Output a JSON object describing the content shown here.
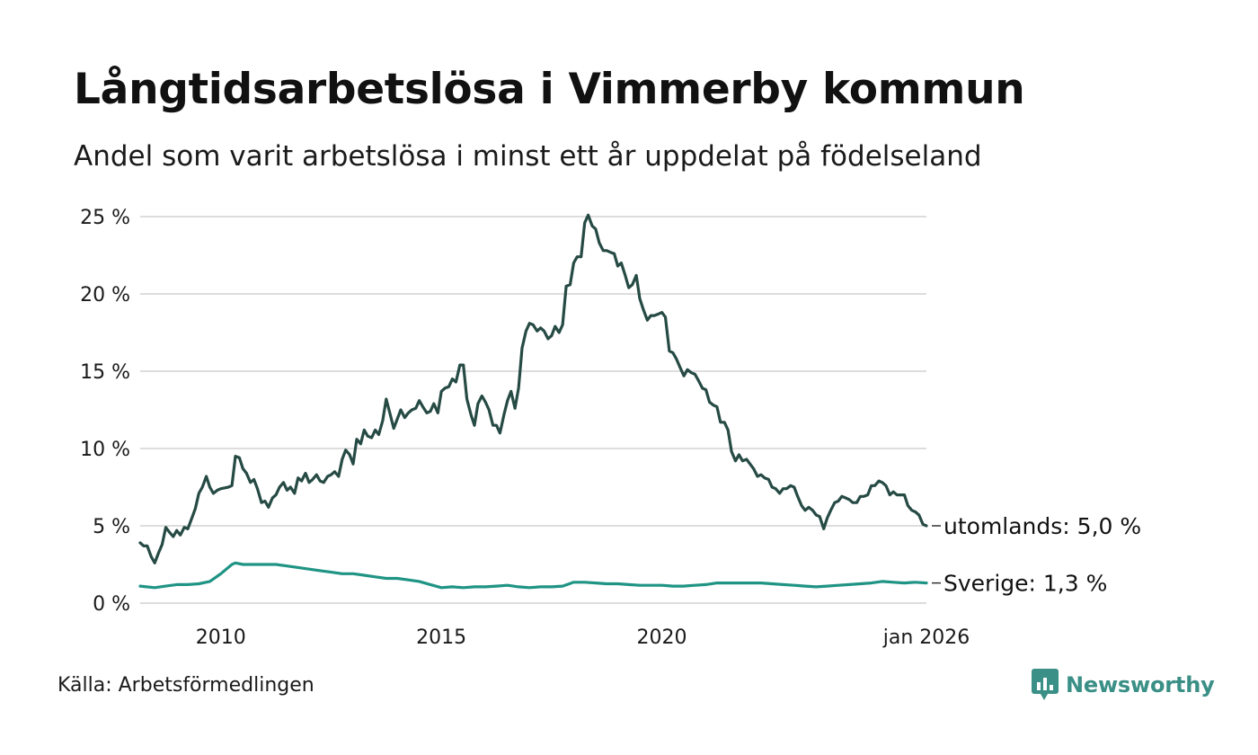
{
  "header": {
    "title": "Långtidsarbetslösa i Vimmerby kommun",
    "subtitle": "Andel som varit arbetslösa i minst ett år uppdelat på födelseland"
  },
  "footer": {
    "source": "Källa: Arbetsförmedlingen",
    "brand": "Newsworthy"
  },
  "colors": {
    "utomlands": "#264a44",
    "sverige": "#1f9484",
    "grid": "#dddddd",
    "brand": "#3a8f86"
  },
  "chart_data": {
    "type": "line",
    "title": "Långtidsarbetslösa i Vimmerby kommun",
    "subtitle": "Andel som varit arbetslösa i minst ett år uppdelat på födelseland",
    "xlabel": "",
    "ylabel": "",
    "x_range": [
      2008.17,
      2026.0
    ],
    "ylim": [
      0,
      25
    ],
    "y_ticks": [
      0,
      5,
      10,
      15,
      20,
      25
    ],
    "y_tick_labels": [
      "0 %",
      "5 %",
      "10 %",
      "15 %",
      "20 %",
      "25 %"
    ],
    "x_ticks": [
      2010,
      2015,
      2020,
      2026.0
    ],
    "x_tick_labels": [
      "2010",
      "2015",
      "2020",
      "jan 2026"
    ],
    "grid": true,
    "series": [
      {
        "name": "utomlands",
        "end_label": "utomlands: 5,0 %",
        "color": "#264a44",
        "points": [
          [
            2008.17,
            3.9
          ],
          [
            2008.25,
            3.7
          ],
          [
            2008.33,
            3.7
          ],
          [
            2008.42,
            3.0
          ],
          [
            2008.5,
            2.6
          ],
          [
            2008.58,
            3.2
          ],
          [
            2008.67,
            3.8
          ],
          [
            2008.75,
            4.9
          ],
          [
            2008.83,
            4.6
          ],
          [
            2008.92,
            4.3
          ],
          [
            2009.0,
            4.7
          ],
          [
            2009.08,
            4.4
          ],
          [
            2009.17,
            4.9
          ],
          [
            2009.25,
            4.8
          ],
          [
            2009.33,
            5.4
          ],
          [
            2009.42,
            6.1
          ],
          [
            2009.5,
            7.1
          ],
          [
            2009.58,
            7.5
          ],
          [
            2009.67,
            8.2
          ],
          [
            2009.75,
            7.5
          ],
          [
            2009.83,
            7.1
          ],
          [
            2009.92,
            7.3
          ],
          [
            2010.0,
            7.4
          ],
          [
            2010.08,
            7.45
          ],
          [
            2010.17,
            7.5
          ],
          [
            2010.25,
            7.6
          ],
          [
            2010.33,
            9.5
          ],
          [
            2010.42,
            9.4
          ],
          [
            2010.5,
            8.7
          ],
          [
            2010.58,
            8.4
          ],
          [
            2010.67,
            7.8
          ],
          [
            2010.75,
            8.0
          ],
          [
            2010.83,
            7.4
          ],
          [
            2010.92,
            6.5
          ],
          [
            2011.0,
            6.6
          ],
          [
            2011.08,
            6.2
          ],
          [
            2011.17,
            6.8
          ],
          [
            2011.25,
            7.0
          ],
          [
            2011.33,
            7.5
          ],
          [
            2011.42,
            7.8
          ],
          [
            2011.5,
            7.3
          ],
          [
            2011.58,
            7.5
          ],
          [
            2011.67,
            7.1
          ],
          [
            2011.75,
            8.1
          ],
          [
            2011.83,
            7.9
          ],
          [
            2011.92,
            8.4
          ],
          [
            2012.0,
            7.8
          ],
          [
            2012.08,
            8.0
          ],
          [
            2012.17,
            8.3
          ],
          [
            2012.25,
            7.9
          ],
          [
            2012.33,
            7.8
          ],
          [
            2012.42,
            8.2
          ],
          [
            2012.5,
            8.3
          ],
          [
            2012.58,
            8.5
          ],
          [
            2012.67,
            8.2
          ],
          [
            2012.75,
            9.3
          ],
          [
            2012.83,
            9.9
          ],
          [
            2012.92,
            9.6
          ],
          [
            2013.0,
            9.0
          ],
          [
            2013.08,
            10.6
          ],
          [
            2013.17,
            10.3
          ],
          [
            2013.25,
            11.2
          ],
          [
            2013.33,
            10.8
          ],
          [
            2013.42,
            10.7
          ],
          [
            2013.5,
            11.2
          ],
          [
            2013.58,
            10.9
          ],
          [
            2013.67,
            11.8
          ],
          [
            2013.75,
            13.2
          ],
          [
            2013.83,
            12.3
          ],
          [
            2013.92,
            11.3
          ],
          [
            2014.0,
            11.9
          ],
          [
            2014.08,
            12.5
          ],
          [
            2014.17,
            12.0
          ],
          [
            2014.25,
            12.3
          ],
          [
            2014.33,
            12.5
          ],
          [
            2014.42,
            12.6
          ],
          [
            2014.5,
            13.1
          ],
          [
            2014.58,
            12.7
          ],
          [
            2014.67,
            12.3
          ],
          [
            2014.75,
            12.4
          ],
          [
            2014.83,
            12.9
          ],
          [
            2014.92,
            12.3
          ],
          [
            2015.0,
            13.7
          ],
          [
            2015.08,
            13.9
          ],
          [
            2015.17,
            14.0
          ],
          [
            2015.25,
            14.5
          ],
          [
            2015.33,
            14.3
          ],
          [
            2015.42,
            15.4
          ],
          [
            2015.5,
            15.4
          ],
          [
            2015.58,
            13.2
          ],
          [
            2015.67,
            12.2
          ],
          [
            2015.75,
            11.5
          ],
          [
            2015.83,
            12.9
          ],
          [
            2015.92,
            13.4
          ],
          [
            2016.0,
            13.0
          ],
          [
            2016.08,
            12.5
          ],
          [
            2016.17,
            11.5
          ],
          [
            2016.25,
            11.5
          ],
          [
            2016.33,
            11.0
          ],
          [
            2016.42,
            12.2
          ],
          [
            2016.5,
            13.1
          ],
          [
            2016.58,
            13.7
          ],
          [
            2016.67,
            12.6
          ],
          [
            2016.75,
            13.9
          ],
          [
            2016.83,
            16.5
          ],
          [
            2016.92,
            17.6
          ],
          [
            2017.0,
            18.1
          ],
          [
            2017.08,
            18.0
          ],
          [
            2017.17,
            17.6
          ],
          [
            2017.25,
            17.8
          ],
          [
            2017.33,
            17.6
          ],
          [
            2017.42,
            17.1
          ],
          [
            2017.5,
            17.3
          ],
          [
            2017.58,
            17.9
          ],
          [
            2017.67,
            17.5
          ],
          [
            2017.75,
            18.0
          ],
          [
            2017.83,
            20.5
          ],
          [
            2017.92,
            20.6
          ],
          [
            2018.0,
            22.0
          ],
          [
            2018.08,
            22.4
          ],
          [
            2018.17,
            22.4
          ],
          [
            2018.25,
            24.6
          ],
          [
            2018.33,
            25.1
          ],
          [
            2018.42,
            24.4
          ],
          [
            2018.5,
            24.2
          ],
          [
            2018.58,
            23.3
          ],
          [
            2018.67,
            22.8
          ],
          [
            2018.75,
            22.8
          ],
          [
            2018.83,
            22.7
          ],
          [
            2018.92,
            22.6
          ],
          [
            2019.0,
            21.8
          ],
          [
            2019.08,
            22.0
          ],
          [
            2019.17,
            21.2
          ],
          [
            2019.25,
            20.4
          ],
          [
            2019.33,
            20.6
          ],
          [
            2019.42,
            21.2
          ],
          [
            2019.5,
            19.7
          ],
          [
            2019.58,
            19.0
          ],
          [
            2019.67,
            18.3
          ],
          [
            2019.75,
            18.6
          ],
          [
            2019.83,
            18.6
          ],
          [
            2019.92,
            18.7
          ],
          [
            2020.0,
            18.8
          ],
          [
            2020.08,
            18.5
          ],
          [
            2020.17,
            16.3
          ],
          [
            2020.25,
            16.2
          ],
          [
            2020.33,
            15.8
          ],
          [
            2020.42,
            15.2
          ],
          [
            2020.5,
            14.7
          ],
          [
            2020.58,
            15.1
          ],
          [
            2020.67,
            14.9
          ],
          [
            2020.75,
            14.8
          ],
          [
            2020.83,
            14.4
          ],
          [
            2020.92,
            13.9
          ],
          [
            2021.0,
            13.8
          ],
          [
            2021.08,
            13.0
          ],
          [
            2021.17,
            12.8
          ],
          [
            2021.25,
            12.7
          ],
          [
            2021.33,
            11.7
          ],
          [
            2021.42,
            11.7
          ],
          [
            2021.5,
            11.2
          ],
          [
            2021.58,
            9.8
          ],
          [
            2021.67,
            9.2
          ],
          [
            2021.75,
            9.6
          ],
          [
            2021.83,
            9.2
          ],
          [
            2021.92,
            9.3
          ],
          [
            2022.0,
            9.0
          ],
          [
            2022.08,
            8.7
          ],
          [
            2022.17,
            8.2
          ],
          [
            2022.25,
            8.3
          ],
          [
            2022.33,
            8.1
          ],
          [
            2022.42,
            8.0
          ],
          [
            2022.5,
            7.5
          ],
          [
            2022.58,
            7.4
          ],
          [
            2022.67,
            7.1
          ],
          [
            2022.75,
            7.4
          ],
          [
            2022.83,
            7.4
          ],
          [
            2022.92,
            7.6
          ],
          [
            2023.0,
            7.5
          ],
          [
            2023.08,
            6.9
          ],
          [
            2023.17,
            6.3
          ],
          [
            2023.25,
            6.0
          ],
          [
            2023.33,
            6.2
          ],
          [
            2023.42,
            6.0
          ],
          [
            2023.5,
            5.7
          ],
          [
            2023.58,
            5.6
          ],
          [
            2023.67,
            4.8
          ],
          [
            2023.75,
            5.5
          ],
          [
            2023.83,
            6.0
          ],
          [
            2023.92,
            6.5
          ],
          [
            2024.0,
            6.6
          ],
          [
            2024.08,
            6.9
          ],
          [
            2024.17,
            6.8
          ],
          [
            2024.25,
            6.7
          ],
          [
            2024.33,
            6.5
          ],
          [
            2024.42,
            6.5
          ],
          [
            2024.5,
            6.9
          ],
          [
            2024.58,
            6.9
          ],
          [
            2024.67,
            7.0
          ],
          [
            2024.75,
            7.6
          ],
          [
            2024.83,
            7.6
          ],
          [
            2024.92,
            7.9
          ],
          [
            2025.0,
            7.8
          ],
          [
            2025.08,
            7.6
          ],
          [
            2025.17,
            7.0
          ],
          [
            2025.25,
            7.2
          ],
          [
            2025.33,
            7.0
          ],
          [
            2025.42,
            7.0
          ],
          [
            2025.5,
            7.0
          ],
          [
            2025.58,
            6.3
          ],
          [
            2025.67,
            6.0
          ],
          [
            2025.75,
            5.9
          ],
          [
            2025.83,
            5.7
          ],
          [
            2025.92,
            5.1
          ],
          [
            2026.0,
            5.0
          ]
        ]
      },
      {
        "name": "Sverige",
        "end_label": "Sverige: 1,3 %",
        "color": "#1f9484",
        "points": [
          [
            2008.17,
            1.1
          ],
          [
            2008.5,
            1.0
          ],
          [
            2008.75,
            1.1
          ],
          [
            2009.0,
            1.2
          ],
          [
            2009.25,
            1.2
          ],
          [
            2009.5,
            1.25
          ],
          [
            2009.75,
            1.4
          ],
          [
            2010.0,
            1.9
          ],
          [
            2010.25,
            2.5
          ],
          [
            2010.33,
            2.6
          ],
          [
            2010.5,
            2.5
          ],
          [
            2010.75,
            2.5
          ],
          [
            2011.0,
            2.5
          ],
          [
            2011.25,
            2.5
          ],
          [
            2011.5,
            2.4
          ],
          [
            2011.75,
            2.3
          ],
          [
            2012.0,
            2.2
          ],
          [
            2012.25,
            2.1
          ],
          [
            2012.5,
            2.0
          ],
          [
            2012.75,
            1.9
          ],
          [
            2013.0,
            1.9
          ],
          [
            2013.25,
            1.8
          ],
          [
            2013.5,
            1.7
          ],
          [
            2013.75,
            1.6
          ],
          [
            2014.0,
            1.6
          ],
          [
            2014.25,
            1.5
          ],
          [
            2014.5,
            1.4
          ],
          [
            2014.75,
            1.2
          ],
          [
            2015.0,
            1.0
          ],
          [
            2015.25,
            1.05
          ],
          [
            2015.5,
            1.0
          ],
          [
            2015.75,
            1.05
          ],
          [
            2016.0,
            1.05
          ],
          [
            2016.25,
            1.1
          ],
          [
            2016.5,
            1.15
          ],
          [
            2016.75,
            1.05
          ],
          [
            2017.0,
            1.0
          ],
          [
            2017.25,
            1.05
          ],
          [
            2017.5,
            1.05
          ],
          [
            2017.75,
            1.1
          ],
          [
            2018.0,
            1.35
          ],
          [
            2018.25,
            1.35
          ],
          [
            2018.5,
            1.3
          ],
          [
            2018.75,
            1.25
          ],
          [
            2019.0,
            1.25
          ],
          [
            2019.25,
            1.2
          ],
          [
            2019.5,
            1.15
          ],
          [
            2019.75,
            1.15
          ],
          [
            2020.0,
            1.15
          ],
          [
            2020.25,
            1.1
          ],
          [
            2020.5,
            1.1
          ],
          [
            2020.75,
            1.15
          ],
          [
            2021.0,
            1.2
          ],
          [
            2021.25,
            1.3
          ],
          [
            2021.5,
            1.3
          ],
          [
            2021.75,
            1.3
          ],
          [
            2022.0,
            1.3
          ],
          [
            2022.25,
            1.3
          ],
          [
            2022.5,
            1.25
          ],
          [
            2022.75,
            1.2
          ],
          [
            2023.0,
            1.15
          ],
          [
            2023.25,
            1.1
          ],
          [
            2023.5,
            1.05
          ],
          [
            2023.75,
            1.1
          ],
          [
            2024.0,
            1.15
          ],
          [
            2024.25,
            1.2
          ],
          [
            2024.5,
            1.25
          ],
          [
            2024.75,
            1.3
          ],
          [
            2025.0,
            1.4
          ],
          [
            2025.25,
            1.35
          ],
          [
            2025.5,
            1.3
          ],
          [
            2025.75,
            1.35
          ],
          [
            2026.0,
            1.3
          ]
        ]
      }
    ]
  }
}
